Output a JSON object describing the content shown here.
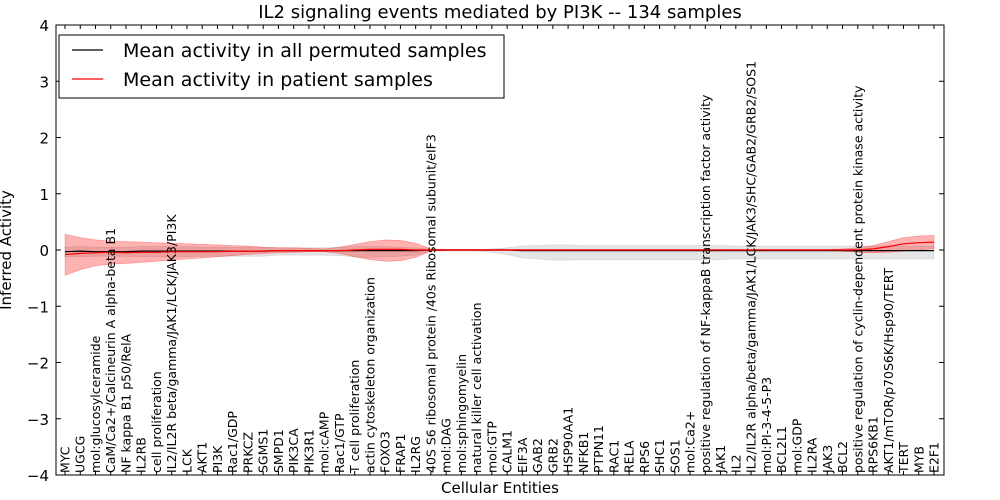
{
  "chart_data": {
    "type": "line",
    "title": "IL2 signaling events mediated by PI3K -- 134 samples",
    "xlabel": "Cellular Entities",
    "ylabel": "Inferred Activity",
    "ylim": [
      -4,
      4
    ],
    "yticks": [
      -4,
      -3,
      -2,
      -1,
      0,
      1,
      2,
      3,
      4
    ],
    "grid": false,
    "legend_position": "top-left",
    "categories": [
      "MYC",
      "UGCG",
      "mol:glucosylceramide",
      "CaM/Ca2+/Calcineurin A alpha-beta B1",
      "NF kappa B1 p50/RelA",
      "IL2RB",
      "cell proliferation",
      "IL2/IL2R beta/gamma/JAK1/LCK/JAK3/PI3K",
      "LCK",
      "AKT1",
      "PI3K",
      "Rac1/GDP",
      "PRKCZ",
      "SGMS1",
      "SMPD1",
      "PIK3CA",
      "PIK3R1",
      "mol:cAMP",
      "Rac1/GTP",
      "T cell proliferation",
      "actin cytoskeleton organization",
      "FOXO3",
      "FRAP1",
      "IL2RG",
      "40S S6 ribosomal protein /40s Ribosomal subunit/eIF3",
      "mol:DAG",
      "mol:sphingomyelin",
      "natural killer cell activation",
      "mol:GTP",
      "CALM1",
      "EIF3A",
      "GAB2",
      "GRB2",
      "HSP90AA1",
      "NFKB1",
      "PTPN11",
      "RAC1",
      "RELA",
      "RPS6",
      "SHC1",
      "SOS1",
      "mol:Ca2+",
      "positive regulation of NF-kappaB transcription factor activity",
      "JAK1",
      "IL2",
      "IL2/IL2R alpha/beta/gamma/JAK1/LCK/JAK3/SHC/GAB2/GRB2/SOS1",
      "mol:PI-3-4-5-P3",
      "BCL2L1",
      "mol:GDP",
      "IL2RA",
      "JAK3",
      "BCL2",
      "positive regulation of cyclin-dependent protein kinase activity",
      "RPS6KB1",
      "AKT1/mTOR/p70S6K/Hsp90/TERT",
      "TERT",
      "MYB",
      "E2F1"
    ],
    "series": [
      {
        "name": "Mean activity in all permuted samples",
        "color": "#000000",
        "values": [
          -0.03,
          -0.02,
          -0.03,
          -0.03,
          -0.03,
          -0.02,
          -0.02,
          -0.02,
          -0.02,
          -0.02,
          -0.02,
          -0.02,
          -0.02,
          -0.02,
          -0.01,
          -0.01,
          -0.01,
          -0.01,
          -0.01,
          -0.01,
          -0.01,
          -0.01,
          -0.01,
          -0.01,
          0.0,
          0.0,
          0.0,
          0.0,
          0.0,
          0.0,
          -0.01,
          -0.01,
          -0.01,
          -0.01,
          -0.01,
          -0.01,
          -0.01,
          -0.01,
          -0.01,
          -0.01,
          -0.01,
          -0.01,
          -0.01,
          -0.01,
          -0.01,
          -0.01,
          -0.01,
          -0.01,
          -0.01,
          -0.01,
          -0.01,
          -0.01,
          -0.01,
          -0.01,
          -0.01,
          -0.01,
          -0.01,
          -0.01
        ],
        "band_upper": [
          0.05,
          0.06,
          0.05,
          0.05,
          0.05,
          0.06,
          0.06,
          0.06,
          0.06,
          0.05,
          0.05,
          0.05,
          0.05,
          0.05,
          0.04,
          0.04,
          0.04,
          0.04,
          0.05,
          0.06,
          0.06,
          0.06,
          0.05,
          0.04,
          0.01,
          0.01,
          0.01,
          0.01,
          0.02,
          0.04,
          0.07,
          0.08,
          0.09,
          0.09,
          0.08,
          0.08,
          0.08,
          0.08,
          0.08,
          0.08,
          0.08,
          0.08,
          0.08,
          0.08,
          0.07,
          0.07,
          0.07,
          0.07,
          0.07,
          0.07,
          0.07,
          0.07,
          0.07,
          0.07,
          0.07,
          0.07,
          0.07,
          0.07
        ],
        "band_lower": [
          -0.12,
          -0.12,
          -0.11,
          -0.11,
          -0.11,
          -0.12,
          -0.12,
          -0.12,
          -0.12,
          -0.11,
          -0.11,
          -0.11,
          -0.11,
          -0.11,
          -0.09,
          -0.09,
          -0.09,
          -0.09,
          -0.1,
          -0.12,
          -0.13,
          -0.12,
          -0.11,
          -0.09,
          -0.02,
          -0.02,
          -0.02,
          -0.02,
          -0.04,
          -0.08,
          -0.14,
          -0.16,
          -0.18,
          -0.18,
          -0.17,
          -0.17,
          -0.17,
          -0.17,
          -0.17,
          -0.17,
          -0.17,
          -0.17,
          -0.17,
          -0.17,
          -0.16,
          -0.16,
          -0.16,
          -0.16,
          -0.16,
          -0.16,
          -0.16,
          -0.16,
          -0.16,
          -0.16,
          -0.16,
          -0.16,
          -0.16,
          -0.16
        ]
      },
      {
        "name": "Mean activity in patient samples",
        "color": "#ff0000",
        "values": [
          -0.08,
          -0.06,
          -0.05,
          -0.04,
          -0.05,
          -0.04,
          -0.04,
          -0.03,
          -0.03,
          -0.03,
          -0.03,
          -0.02,
          -0.02,
          -0.02,
          -0.01,
          -0.01,
          -0.01,
          -0.01,
          -0.01,
          0.0,
          0.01,
          0.01,
          0.01,
          0.0,
          0.0,
          0.0,
          0.0,
          0.0,
          0.0,
          0.0,
          0.0,
          0.0,
          0.0,
          0.0,
          0.0,
          0.0,
          0.0,
          0.0,
          0.0,
          0.0,
          0.0,
          0.0,
          0.0,
          0.0,
          0.0,
          0.0,
          0.0,
          0.0,
          0.0,
          0.0,
          0.0,
          0.0,
          0.0,
          0.02,
          0.06,
          0.11,
          0.13,
          0.14
        ],
        "band_upper": [
          0.28,
          0.22,
          0.18,
          0.16,
          0.15,
          0.14,
          0.13,
          0.12,
          0.11,
          0.1,
          0.09,
          0.08,
          0.07,
          0.05,
          0.04,
          0.04,
          0.03,
          0.02,
          0.05,
          0.1,
          0.15,
          0.18,
          0.17,
          0.12,
          0.02,
          0.01,
          0.01,
          0.01,
          0.01,
          0.01,
          0.01,
          0.01,
          0.01,
          0.01,
          0.01,
          0.01,
          0.01,
          0.01,
          0.01,
          0.01,
          0.01,
          0.01,
          0.01,
          0.01,
          0.01,
          0.01,
          0.01,
          0.01,
          0.01,
          0.01,
          0.01,
          0.02,
          0.04,
          0.08,
          0.15,
          0.22,
          0.25,
          0.26
        ],
        "band_lower": [
          -0.45,
          -0.35,
          -0.28,
          -0.25,
          -0.24,
          -0.22,
          -0.2,
          -0.18,
          -0.16,
          -0.14,
          -0.12,
          -0.1,
          -0.08,
          -0.06,
          -0.05,
          -0.04,
          -0.03,
          -0.03,
          -0.06,
          -0.12,
          -0.17,
          -0.2,
          -0.19,
          -0.13,
          -0.02,
          -0.01,
          -0.01,
          -0.01,
          -0.01,
          -0.01,
          -0.01,
          -0.01,
          -0.01,
          -0.01,
          -0.01,
          -0.01,
          -0.01,
          -0.01,
          -0.01,
          -0.01,
          -0.01,
          -0.01,
          -0.01,
          -0.01,
          -0.01,
          -0.01,
          -0.01,
          -0.01,
          -0.01,
          -0.01,
          -0.01,
          -0.02,
          -0.04,
          -0.05,
          -0.04,
          -0.02,
          0.0,
          0.02
        ]
      }
    ]
  }
}
